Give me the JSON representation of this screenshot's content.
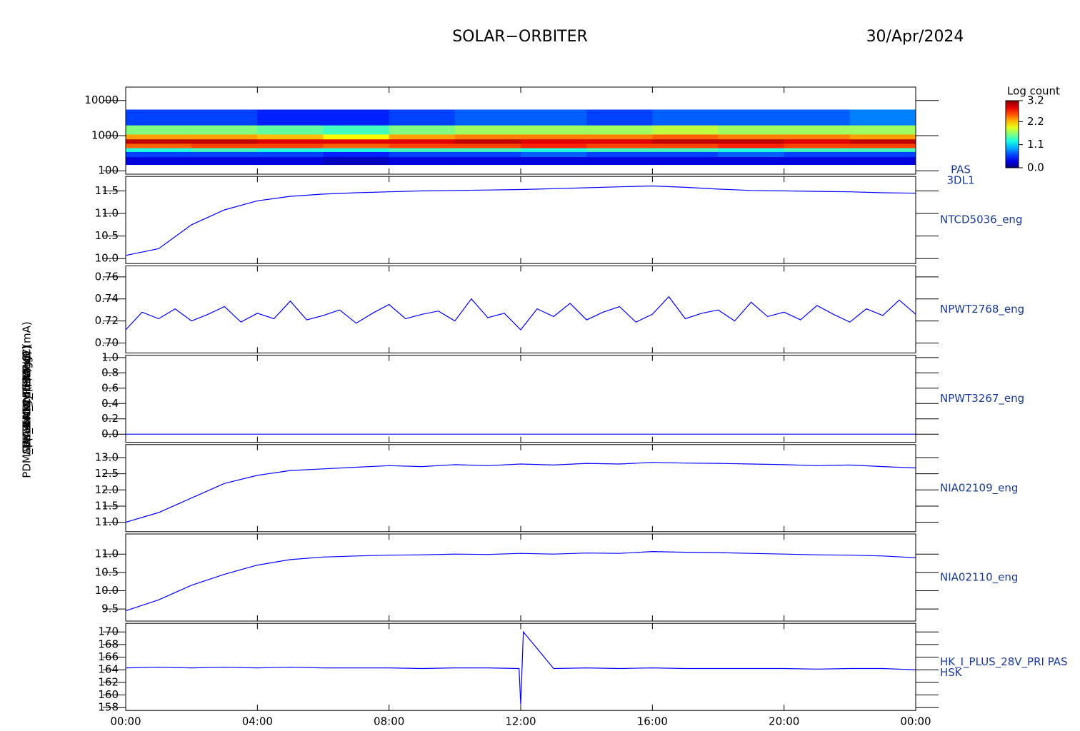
{
  "chart_data": {
    "type": "panels",
    "title": "SOLAR−ORBITER",
    "subtitle": "30/Apr/2024",
    "xlim": [
      0,
      24
    ],
    "xticks": [
      {
        "value": 0,
        "label": "00:00"
      },
      {
        "value": 4,
        "label": "04:00"
      },
      {
        "value": 8,
        "label": "08:00"
      },
      {
        "value": 12,
        "label": "12:00"
      },
      {
        "value": 16,
        "label": "16:00"
      },
      {
        "value": 20,
        "label": "20:00"
      },
      {
        "value": 24,
        "label": "00:00"
      }
    ],
    "panels": [
      {
        "type": "heatmap",
        "ylabel": "Energy (eV)",
        "right_label": [
          "PAS",
          "3DL1"
        ],
        "log_y": true,
        "ylim": [
          80,
          24000
        ],
        "yticks": [
          100,
          1000,
          10000
        ],
        "x_edges": [
          0,
          2,
          4,
          6,
          8,
          10,
          12,
          14,
          16,
          18,
          20,
          22,
          24
        ],
        "y_edges": [
          150,
          250,
          350,
          450,
          600,
          800,
          1100,
          2000,
          5500
        ],
        "z": [
          [
            0.3,
            0.3,
            0.3,
            0.2,
            0.3,
            0.3,
            0.3,
            0.3,
            0.3,
            0.3,
            0.3,
            0.3
          ],
          [
            0.6,
            0.6,
            0.6,
            0.5,
            0.6,
            0.6,
            0.7,
            0.6,
            0.6,
            0.7,
            0.6,
            0.6
          ],
          [
            1.3,
            1.4,
            1.3,
            1.3,
            1.4,
            1.4,
            1.3,
            1.4,
            1.4,
            1.3,
            1.4,
            1.4
          ],
          [
            2.5,
            2.6,
            2.6,
            2.5,
            2.6,
            2.6,
            2.7,
            2.6,
            2.6,
            2.7,
            2.6,
            2.6
          ],
          [
            3.0,
            3.0,
            2.9,
            2.9,
            2.9,
            3.0,
            2.9,
            2.9,
            3.0,
            3.0,
            2.9,
            3.0
          ],
          [
            2.3,
            2.3,
            2.2,
            2.0,
            2.3,
            2.4,
            2.4,
            2.4,
            2.5,
            2.4,
            2.4,
            2.3
          ],
          [
            1.6,
            1.6,
            1.5,
            1.4,
            1.6,
            1.7,
            1.7,
            1.7,
            1.8,
            1.7,
            1.7,
            1.7
          ],
          [
            0.6,
            0.6,
            0.5,
            0.5,
            0.6,
            0.7,
            0.7,
            0.6,
            0.7,
            0.7,
            0.7,
            0.8
          ]
        ],
        "colorbar": {
          "label": "Log count",
          "lim": [
            0,
            3.2
          ],
          "ticks": [
            {
              "value": 0,
              "label": "0.0"
            },
            1.1,
            2.2,
            3.2
          ]
        }
      },
      {
        "type": "line",
        "ylabel": "Approx Temp (DegC)",
        "right_label": [
          "NTCD5036_eng"
        ],
        "color": "#0000ff",
        "ylim": [
          9.89,
          11.82
        ],
        "yticks": [
          {
            "value": 10,
            "label": "10.0"
          },
          10.5,
          {
            "value": 11,
            "label": "11.0"
          },
          11.5
        ],
        "x": [
          0,
          1,
          2,
          3,
          4,
          5,
          6,
          7,
          8,
          9,
          10,
          11,
          12,
          13,
          14,
          15,
          16,
          17,
          18,
          19,
          20,
          21,
          22,
          23,
          24
        ],
        "values": [
          10.07,
          10.22,
          10.75,
          11.08,
          11.28,
          11.38,
          11.43,
          11.46,
          11.48,
          11.5,
          11.51,
          11.52,
          11.53,
          11.55,
          11.57,
          11.59,
          11.61,
          11.58,
          11.54,
          11.51,
          11.5,
          11.49,
          11.48,
          11.46,
          11.45
        ]
      },
      {
        "type": "line",
        "ylabel": "SWA-EAS1_TEMP (V)",
        "right_label": [
          "NPWT2768_eng"
        ],
        "color": "#0000ff",
        "ylim": [
          0.691,
          0.77
        ],
        "yticks": [
          {
            "value": 0.7,
            "label": "0.70"
          },
          0.72,
          0.74,
          0.76
        ],
        "x": [
          0,
          0.5,
          1,
          1.5,
          2,
          2.5,
          3,
          3.5,
          4,
          4.5,
          5,
          5.5,
          6,
          6.5,
          7,
          7.5,
          8,
          8.5,
          9,
          9.5,
          10,
          10.5,
          11,
          11.5,
          12,
          12.5,
          13,
          13.5,
          14,
          14.5,
          15,
          15.5,
          16,
          16.5,
          17,
          17.5,
          18,
          18.5,
          19,
          19.5,
          20,
          20.5,
          21,
          21.5,
          22,
          22.5,
          23,
          23.5,
          24
        ],
        "values": [
          0.712,
          0.728,
          0.722,
          0.731,
          0.72,
          0.726,
          0.733,
          0.719,
          0.727,
          0.722,
          0.738,
          0.721,
          0.725,
          0.73,
          0.718,
          0.727,
          0.735,
          0.722,
          0.726,
          0.729,
          0.72,
          0.74,
          0.723,
          0.727,
          0.712,
          0.731,
          0.724,
          0.736,
          0.721,
          0.728,
          0.733,
          0.719,
          0.726,
          0.742,
          0.722,
          0.727,
          0.73,
          0.72,
          0.737,
          0.724,
          0.728,
          0.721,
          0.734,
          0.726,
          0.719,
          0.731,
          0.725,
          0.739,
          0.726
        ]
      },
      {
        "type": "line",
        "ylabel": "SWA-EAS2_TEMP (V)",
        "right_label": [
          "NPWT3267_eng"
        ],
        "color": "#0000ff",
        "ylim": [
          -0.106,
          1.03
        ],
        "yticks": [
          {
            "value": 0,
            "label": "0.0"
          },
          0.2,
          0.4,
          0.6,
          0.8,
          {
            "value": 1,
            "label": "1.0"
          }
        ],
        "x": [
          0,
          24
        ],
        "values": [
          0,
          0
        ]
      },
      {
        "type": "line",
        "ylabel": "THERM_C4 (DegC)",
        "right_label": [
          "NIA02109_eng"
        ],
        "color": "#0000ff",
        "ylim": [
          10.71,
          13.4
        ],
        "yticks": [
          {
            "value": 11,
            "label": "11.0"
          },
          11.5,
          {
            "value": 12,
            "label": "12.0"
          },
          12.5,
          {
            "value": 13,
            "label": "13.0"
          }
        ],
        "x": [
          0,
          1,
          2,
          3,
          4,
          5,
          6,
          7,
          8,
          9,
          10,
          11,
          12,
          13,
          14,
          15,
          16,
          17,
          18,
          19,
          20,
          21,
          22,
          23,
          24
        ],
        "values": [
          11.0,
          11.3,
          11.75,
          12.2,
          12.45,
          12.6,
          12.65,
          12.7,
          12.75,
          12.72,
          12.78,
          12.75,
          12.8,
          12.77,
          12.82,
          12.8,
          12.85,
          12.83,
          12.82,
          12.8,
          12.78,
          12.75,
          12.77,
          12.72,
          12.68
        ]
      },
      {
        "type": "line",
        "ylabel": "THERM_C5 (DegC)",
        "right_label": [
          "NIA02110_eng"
        ],
        "color": "#0000ff",
        "ylim": [
          9.17,
          11.55
        ],
        "yticks": [
          9.5,
          {
            "value": 10,
            "label": "10.0"
          },
          10.5,
          {
            "value": 11,
            "label": "11.0"
          }
        ],
        "x": [
          0,
          1,
          2,
          3,
          4,
          5,
          6,
          7,
          8,
          9,
          10,
          11,
          12,
          13,
          14,
          15,
          16,
          17,
          18,
          19,
          20,
          21,
          22,
          23,
          24
        ],
        "values": [
          9.45,
          9.75,
          10.15,
          10.45,
          10.7,
          10.85,
          10.92,
          10.95,
          10.97,
          10.98,
          11.0,
          10.99,
          11.02,
          11.0,
          11.03,
          11.02,
          11.07,
          11.05,
          11.04,
          11.02,
          11.0,
          10.98,
          10.97,
          10.95,
          10.9
        ]
      },
      {
        "type": "line",
        "ylabel": "PDM_HK_IMON_PERMLB (mA)",
        "right_label": [
          "HK_I_PLUS_28V_PRI PAS",
          "HSK"
        ],
        "color": "#0000ff",
        "ylim": [
          157.55,
          171.36
        ],
        "yticks": [
          158,
          160,
          162,
          164,
          166,
          168,
          170
        ],
        "x": [
          0,
          1,
          2,
          3,
          4,
          5,
          6,
          7,
          8,
          9,
          10,
          11,
          11.95,
          12.0,
          12.08,
          13,
          14,
          15,
          16,
          17,
          18,
          19,
          20,
          21,
          22,
          23,
          24
        ],
        "values": [
          164.3,
          164.4,
          164.3,
          164.4,
          164.3,
          164.4,
          164.3,
          164.3,
          164.3,
          164.2,
          164.3,
          164.3,
          164.2,
          158.5,
          170,
          164.2,
          164.3,
          164.2,
          164.3,
          164.2,
          164.2,
          164.2,
          164.2,
          164.1,
          164.2,
          164.2,
          164.0
        ]
      }
    ]
  }
}
